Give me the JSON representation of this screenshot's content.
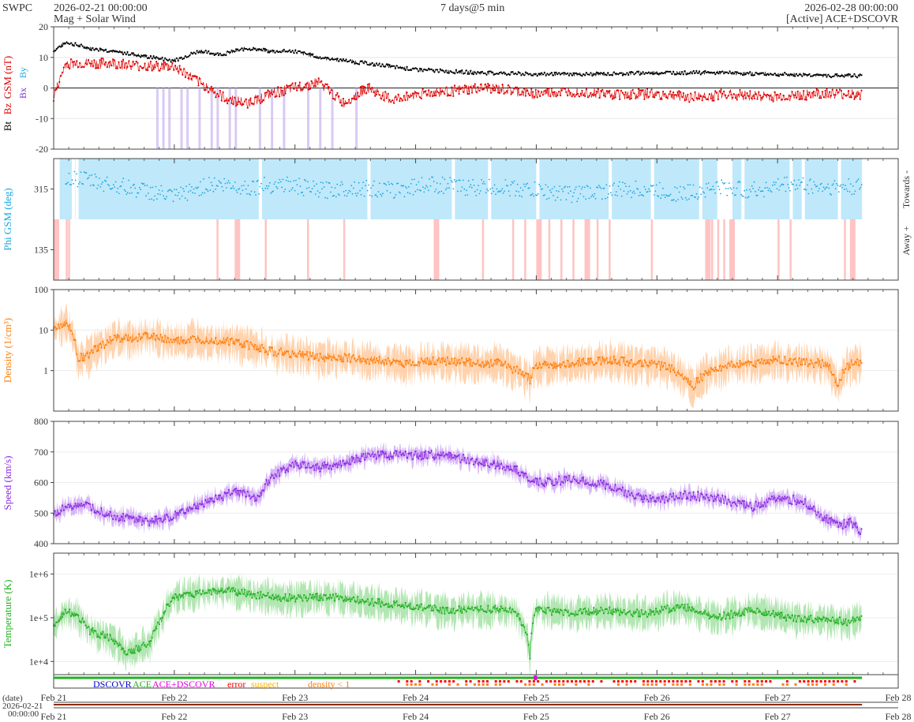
{
  "header": {
    "org": "SWPC",
    "start": "2026-02-21 00:00:00",
    "subtitle": "Mag + Solar Wind",
    "span": "7 days@5 min",
    "end": "2026-02-28 00:00:00",
    "source": "[Active] ACE+DSCOVR"
  },
  "colors": {
    "bt": "#000000",
    "bz": "#e00000",
    "bx": "#7b2fd6",
    "by": "#1ba8e0",
    "phi": "#1ba8e0",
    "phi_towards": "#bfe8fb",
    "phi_away": "#ffbcbc",
    "density": "#ff7f0e",
    "density_band": "#ffc89a",
    "speed": "#8a2be2",
    "speed_band": "#cfa6f5",
    "temperature": "#22b022",
    "temperature_band": "#9fe09f",
    "bz_band": "#c9b3ee",
    "dscovr": "#0000cc",
    "ace": "#22b022",
    "ace_dscovr": "#e600e6",
    "error": "#ff0000",
    "suspect": "#ffb000",
    "density_lt1": "#ff7f0e",
    "timeline": "#8b2b00"
  },
  "chart_data": [
    {
      "type": "line",
      "panel": "mag",
      "ylabel": "Bt Bz GSM (nT)",
      "ylabel_parts": [
        "Bt",
        "Bz",
        "GSM (nT)"
      ],
      "side_legend": [
        "Bx",
        "By"
      ],
      "ylim": [
        -20,
        20
      ],
      "yticks": [
        -20,
        -10,
        0,
        10,
        20
      ],
      "ytick_labels": [
        "-20",
        "-10",
        "0",
        "10",
        "20"
      ],
      "series": [
        {
          "name": "Bt",
          "x": [
            0,
            0.1,
            0.3,
            0.5,
            0.8,
            1,
            1.2,
            1.4,
            1.6,
            1.8,
            2,
            2.2,
            2.4,
            2.6,
            2.8,
            3,
            3.5,
            4,
            4.5,
            5,
            5.5,
            6,
            6.5,
            6.7
          ],
          "values": [
            12,
            15,
            13,
            12,
            10,
            9,
            12,
            11,
            13,
            12,
            12,
            10,
            9,
            8,
            7,
            6,
            5,
            4.5,
            4.5,
            5,
            5,
            4.5,
            4,
            4
          ]
        },
        {
          "name": "Bz",
          "x": [
            0,
            0.1,
            0.3,
            0.5,
            0.8,
            1,
            1.2,
            1.4,
            1.6,
            1.8,
            2,
            2.2,
            2.4,
            2.6,
            2.8,
            3,
            3.3,
            3.6,
            4,
            4.3,
            4.6,
            5,
            5.3,
            5.6,
            6,
            6.3,
            6.7
          ],
          "values": [
            -3,
            8,
            8,
            8,
            7,
            7,
            2,
            -3,
            -5,
            -2,
            0,
            2,
            -5,
            0,
            -4,
            -2,
            -1,
            0,
            -2,
            -1,
            -2,
            -2,
            -3,
            -2,
            -3,
            -2,
            -2
          ]
        }
      ]
    },
    {
      "type": "scatter",
      "panel": "phi",
      "ylabel": "Phi GSM (deg)",
      "ylim": [
        45,
        405
      ],
      "yticks": [
        135,
        315
      ],
      "ytick_labels": [
        "135",
        "315"
      ],
      "right_labels": [
        "Towards -",
        "Away +"
      ],
      "series": [
        {
          "name": "Phi",
          "x": [
            0.1,
            0.3,
            0.6,
            0.9,
            1,
            1.3,
            1.6,
            1.9,
            2.2,
            2.5,
            2.8,
            3.1,
            3.4,
            3.7,
            4,
            4.3,
            4.6,
            4.9,
            5.2,
            5.5,
            5.8,
            6.1,
            6.4,
            6.7
          ],
          "values": [
            350,
            340,
            320,
            300,
            290,
            330,
            320,
            330,
            310,
            320,
            310,
            330,
            320,
            320,
            310,
            300,
            310,
            315,
            300,
            320,
            310,
            330,
            320,
            320
          ]
        }
      ]
    },
    {
      "type": "area",
      "panel": "density",
      "ylabel": "Density (1/cm³)",
      "yscale": "log",
      "ylim": [
        0.1,
        100
      ],
      "ytick_labels": [
        "1",
        "10",
        "100"
      ],
      "series": [
        {
          "name": "Density",
          "x": [
            0,
            0.1,
            0.2,
            0.3,
            0.5,
            0.8,
            1,
            1.2,
            1.5,
            1.8,
            2,
            2.2,
            2.5,
            2.8,
            3,
            3.2,
            3.5,
            3.7,
            3.95,
            4,
            4.3,
            4.6,
            4.9,
            5.1,
            5.3,
            5.5,
            5.8,
            6,
            6.2,
            6.4,
            6.5,
            6.6,
            6.7
          ],
          "values": [
            10,
            15,
            2,
            2.5,
            6,
            7,
            5,
            6,
            5,
            3,
            2.5,
            2.2,
            2,
            1.6,
            1.5,
            1.8,
            1.5,
            1.5,
            0.6,
            1.3,
            1.5,
            1.8,
            1.5,
            1.2,
            0.4,
            1.2,
            1.5,
            1.8,
            1.6,
            1.5,
            0.4,
            1.5,
            1.5
          ]
        }
      ]
    },
    {
      "type": "line",
      "panel": "speed",
      "ylabel": "Speed (km/s)",
      "ylim": [
        400,
        800
      ],
      "yticks": [
        400,
        500,
        600,
        700,
        800
      ],
      "ytick_labels": [
        "400",
        "500",
        "600",
        "700",
        "800"
      ],
      "series": [
        {
          "name": "Speed",
          "x": [
            0,
            0.2,
            0.5,
            0.8,
            1,
            1.3,
            1.5,
            1.7,
            1.8,
            2,
            2.2,
            2.4,
            2.6,
            3,
            3.2,
            3.5,
            3.8,
            3.95,
            4,
            4.3,
            4.6,
            4.8,
            5,
            5.2,
            5.5,
            5.8,
            6,
            6.2,
            6.4,
            6.5,
            6.6,
            6.7
          ],
          "values": [
            500,
            530,
            490,
            470,
            490,
            540,
            570,
            550,
            620,
            660,
            650,
            660,
            690,
            690,
            690,
            670,
            650,
            610,
            600,
            610,
            590,
            560,
            540,
            560,
            550,
            520,
            550,
            540,
            480,
            460,
            470,
            440
          ]
        }
      ]
    },
    {
      "type": "area",
      "panel": "temperature",
      "ylabel": "Temperature (K)",
      "yscale": "log",
      "ylim": [
        5000,
        3000000
      ],
      "ytick_labels": [
        "1e+4",
        "1e+5",
        "1e+6"
      ],
      "series": [
        {
          "name": "Temperature",
          "x": [
            0,
            0.1,
            0.3,
            0.5,
            0.6,
            0.8,
            0.9,
            1,
            1.2,
            1.4,
            1.6,
            1.8,
            2,
            2.3,
            2.6,
            2.9,
            3.2,
            3.5,
            3.8,
            3.95,
            4,
            4.3,
            4.6,
            4.9,
            5.2,
            5.5,
            5.8,
            6.1,
            6.4,
            6.6,
            6.7
          ],
          "values": [
            60000,
            150000,
            50000,
            30000,
            15000,
            25000,
            100000,
            300000,
            350000,
            450000,
            350000,
            300000,
            280000,
            300000,
            230000,
            200000,
            150000,
            160000,
            150000,
            12000,
            150000,
            130000,
            150000,
            120000,
            180000,
            100000,
            150000,
            100000,
            90000,
            80000,
            100000
          ]
        }
      ]
    },
    {
      "type": "table",
      "panel": "source",
      "legend": [
        "DSCOVR",
        "ACE",
        "ACE+DSCOVR",
        "error",
        "suspect",
        "density < 1"
      ]
    }
  ],
  "xaxis": {
    "ticks": [
      "Feb 21",
      "Feb 22",
      "Feb 23",
      "Feb 24",
      "Feb 25",
      "Feb 26",
      "Feb 27",
      "Feb 28"
    ],
    "date_label": "(date)"
  },
  "timeline": {
    "start_date": "2026-02-21",
    "start_time": "00:00:00",
    "ticks": [
      "Feb 21",
      "Feb 22",
      "Feb 23",
      "Feb 24",
      "Feb 25",
      "Feb 26",
      "Feb 27",
      "Feb 28"
    ]
  }
}
